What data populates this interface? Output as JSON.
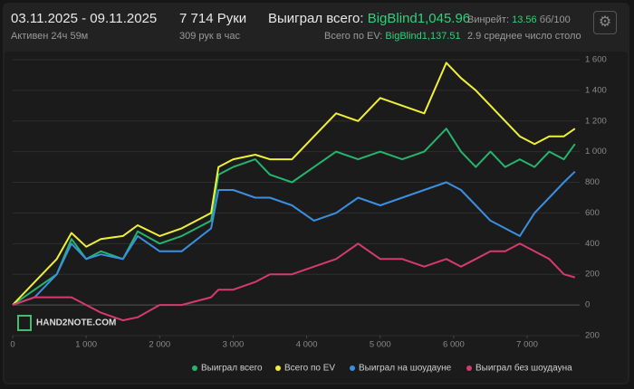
{
  "header": {
    "date_range": "03.11.2025 - 09.11.2025",
    "active": "Активен 24ч 59м",
    "hands": "7 714 Руки",
    "hands_per_hour": "309 рук в час",
    "won_label": "Выиграл всего:",
    "won_value": "BigBlind1,045.96",
    "ev_label": "Всего по EV:",
    "ev_value": "BigBlind1,137.51",
    "winrate_label": "Винрейт:",
    "winrate_value": "13.56",
    "winrate_unit": "бб/100",
    "tables": "2.9 среднее число столо"
  },
  "watermark": "HAND2NOTE.COM",
  "chart_data": {
    "type": "line",
    "x": [
      0,
      300,
      600,
      800,
      1000,
      1200,
      1500,
      1700,
      2000,
      2300,
      2700,
      2800,
      3000,
      3300,
      3500,
      3800,
      4100,
      4400,
      4700,
      5000,
      5300,
      5600,
      5900,
      6100,
      6300,
      6500,
      6700,
      6900,
      7100,
      7300,
      7500,
      7650
    ],
    "series": [
      {
        "name": "Выиграл всего",
        "color": "#25b56c",
        "values": [
          0,
          100,
          200,
          430,
          300,
          350,
          300,
          480,
          400,
          450,
          550,
          850,
          900,
          950,
          850,
          800,
          900,
          1000,
          950,
          1000,
          950,
          1000,
          1150,
          1000,
          900,
          1000,
          900,
          950,
          900,
          1000,
          950,
          1050
        ]
      },
      {
        "name": "Всего по EV",
        "color": "#f0f03a",
        "values": [
          0,
          150,
          300,
          470,
          380,
          430,
          450,
          520,
          450,
          500,
          600,
          900,
          950,
          980,
          950,
          950,
          1100,
          1250,
          1200,
          1350,
          1300,
          1250,
          1580,
          1480,
          1400,
          1300,
          1200,
          1100,
          1050,
          1100,
          1100,
          1150
        ]
      },
      {
        "name": "Выиграл на шоудауне",
        "color": "#3a8fe0",
        "values": [
          0,
          50,
          200,
          400,
          300,
          330,
          300,
          450,
          350,
          350,
          500,
          750,
          750,
          700,
          700,
          650,
          550,
          600,
          700,
          650,
          700,
          750,
          800,
          750,
          650,
          550,
          500,
          450,
          600,
          700,
          800,
          870
        ]
      },
      {
        "name": "Выиграл без шоудауна",
        "color": "#d63a6e",
        "values": [
          0,
          50,
          50,
          50,
          0,
          -50,
          -100,
          -80,
          0,
          0,
          50,
          100,
          100,
          150,
          200,
          200,
          250,
          300,
          400,
          300,
          300,
          250,
          300,
          250,
          300,
          350,
          350,
          400,
          350,
          300,
          200,
          180
        ]
      }
    ],
    "xlim": [
      0,
      7714
    ],
    "xticks": [
      0,
      {
        "value": 1000,
        "label": "1 000"
      },
      {
        "value": 2000,
        "label": "2 000"
      },
      {
        "value": 3000,
        "label": "3 000"
      },
      {
        "value": 4000,
        "label": "4 000"
      },
      {
        "value": 5000,
        "label": "5 000"
      },
      {
        "value": 6000,
        "label": "6 000"
      },
      {
        "value": 7000,
        "label": "7 000"
      }
    ],
    "ylim": [
      -200,
      1650
    ],
    "yticks": [
      {
        "value": -200,
        "label": "200"
      },
      0,
      200,
      400,
      600,
      800,
      {
        "value": 1000,
        "label": "1 000"
      },
      {
        "value": 1200,
        "label": "1 200"
      },
      {
        "value": 1400,
        "label": "1 400"
      },
      {
        "value": 1600,
        "label": "1 600"
      }
    ],
    "grid": true,
    "legend": "bottom-right"
  }
}
